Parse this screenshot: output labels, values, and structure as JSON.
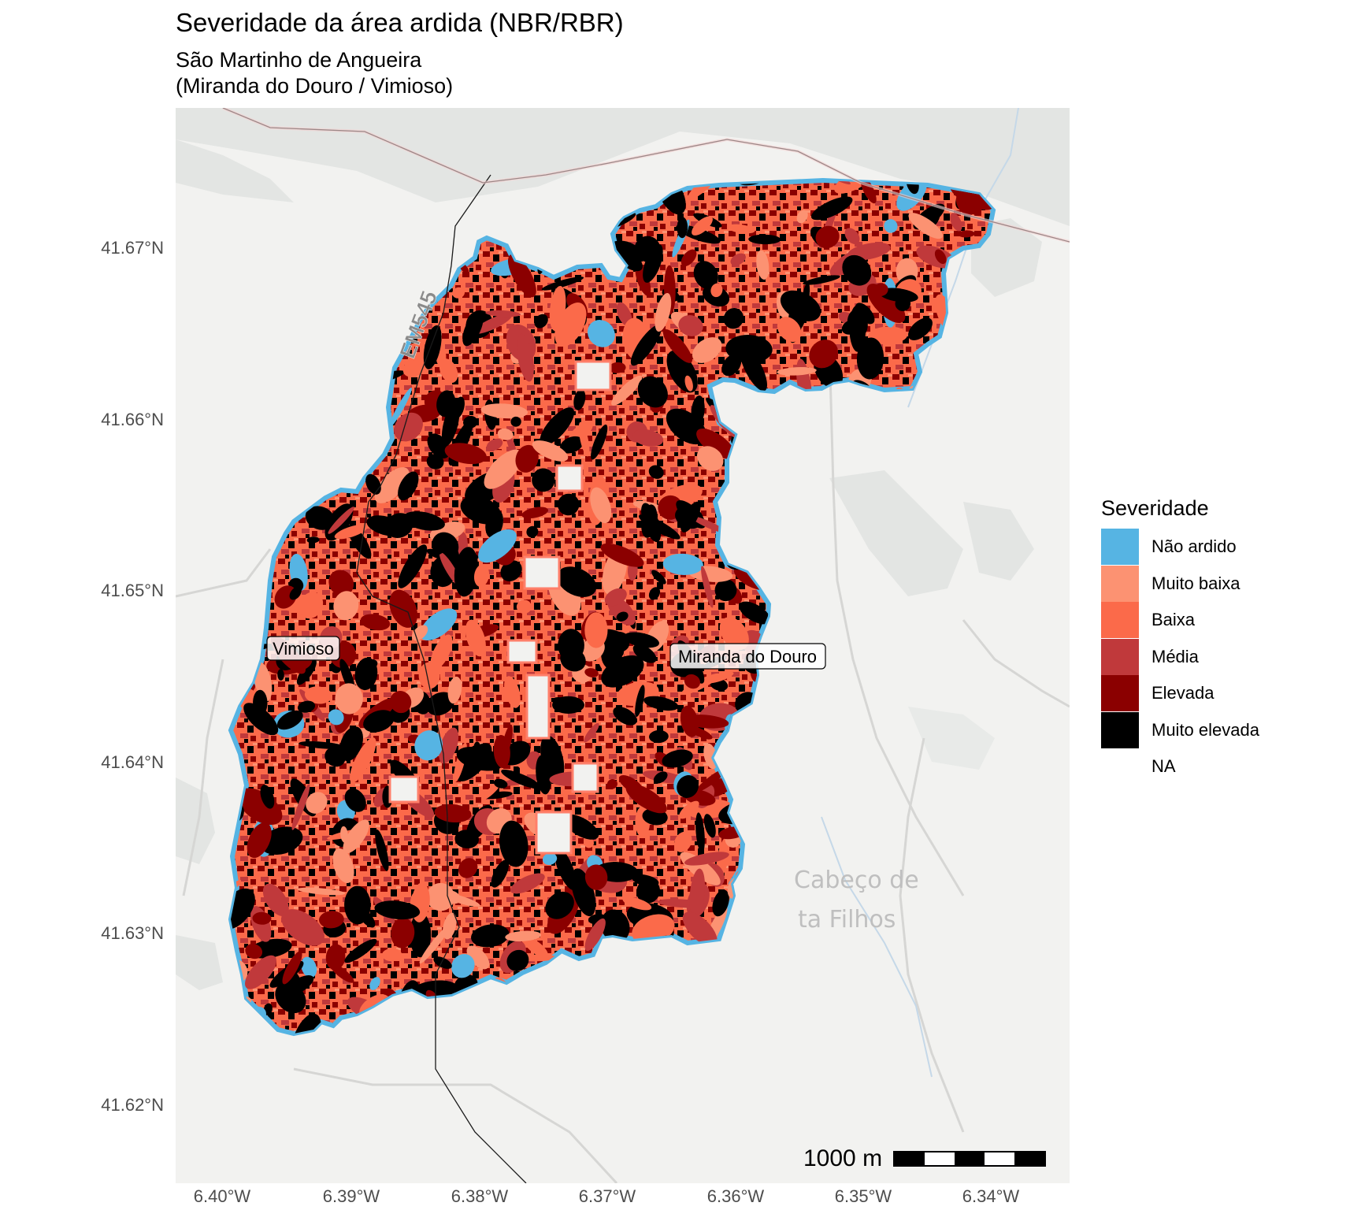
{
  "title": "Severidade da área ardida (NBR/RBR)",
  "subtitle_line1": "São Martinho de Angueira",
  "subtitle_line2": "(Miranda do Douro / Vimioso)",
  "basemap": {
    "road_label": "EM545",
    "place_labels": [
      "Cabeço de",
      "ta Filhos"
    ]
  },
  "map_labels": {
    "vimioso": "Vimioso",
    "miranda": "Miranda do Douro"
  },
  "y_ticks": [
    "41.67°N",
    "41.66°N",
    "41.65°N",
    "41.64°N",
    "41.63°N",
    "41.62°N"
  ],
  "x_ticks": [
    "6.40°W",
    "6.39°W",
    "6.38°W",
    "6.37°W",
    "6.36°W",
    "6.35°W",
    "6.34°W"
  ],
  "legend": {
    "title": "Severidade",
    "items": [
      {
        "label": "Não ardido",
        "color": "#56B4E3"
      },
      {
        "label": "Muito baixa",
        "color": "#FC9272"
      },
      {
        "label": "Baixa",
        "color": "#FB6A4A"
      },
      {
        "label": "Média",
        "color": "#C0393B"
      },
      {
        "label": "Elevada",
        "color": "#8B0000"
      },
      {
        "label": "Muito elevada",
        "color": "#000000"
      },
      {
        "label": "NA",
        "color": "transparent"
      }
    ]
  },
  "scalebar": {
    "label": "1000 m"
  },
  "colors": {
    "basemap_bg": "#F2F2F0",
    "basemap_land": "#E3E5E3",
    "edge_orange": "#FF7F6A"
  }
}
